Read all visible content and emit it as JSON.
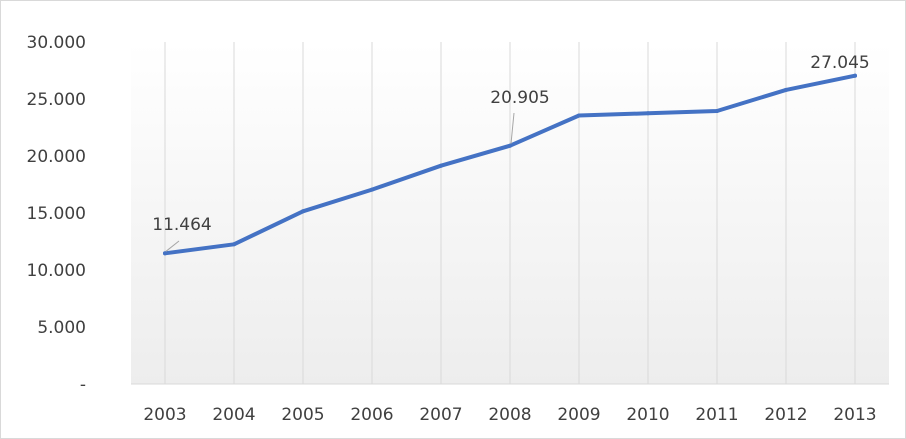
{
  "chart_data": {
    "type": "line",
    "x": [
      "2003",
      "2004",
      "2005",
      "2006",
      "2007",
      "2008",
      "2009",
      "2010",
      "2011",
      "2012",
      "2013"
    ],
    "series": [
      {
        "values": [
          11464,
          12250,
          15150,
          17050,
          19150,
          20905,
          23550,
          23750,
          23950,
          25800,
          27045
        ]
      }
    ],
    "ylim": [
      0,
      30000
    ],
    "y_ticks": [
      0,
      5000,
      10000,
      15000,
      20000,
      25000,
      30000
    ],
    "y_tick_labels": [
      "-",
      "5.000",
      "10.000",
      "15.000",
      "20.000",
      "25.000",
      "30.000"
    ],
    "data_labels": [
      {
        "index": 0,
        "text": "11.464"
      },
      {
        "index": 5,
        "text": "20.905"
      },
      {
        "index": 10,
        "text": "27.045"
      }
    ],
    "line_color": "#4472c4",
    "grid": "vertical",
    "legend": "none"
  }
}
